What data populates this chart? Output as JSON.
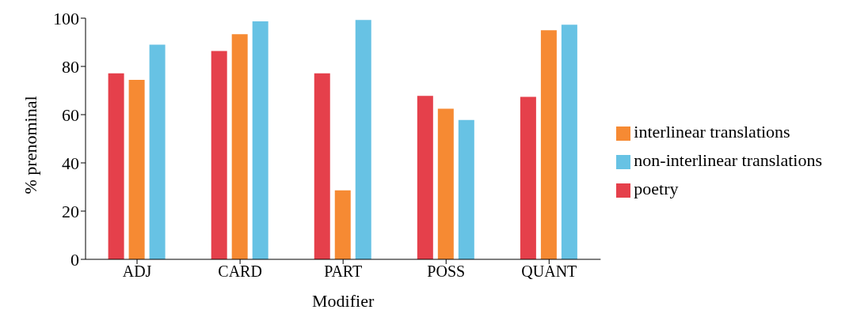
{
  "chart_data": {
    "type": "bar",
    "xlabel": "Modifier",
    "ylabel": "% prenominal",
    "categories": [
      "ADJ",
      "CARD",
      "PART",
      "POSS",
      "QUANT"
    ],
    "series": [
      {
        "name": "poetry",
        "color": "#e5404b",
        "values": [
          77.1,
          86.4,
          77.1,
          67.8,
          67.4
        ]
      },
      {
        "name": "interlinear translations",
        "color": "#f68a33",
        "values": [
          74.4,
          93.4,
          28.6,
          62.5,
          95.0
        ]
      },
      {
        "name": "non-interlinear translations",
        "color": "#67c2e4",
        "values": [
          89.0,
          98.7,
          99.3,
          57.8,
          97.3
        ]
      }
    ],
    "ylim": [
      0,
      100
    ],
    "yticks": [
      0,
      20,
      40,
      60,
      80,
      100
    ],
    "grid": false,
    "legend": "right"
  }
}
